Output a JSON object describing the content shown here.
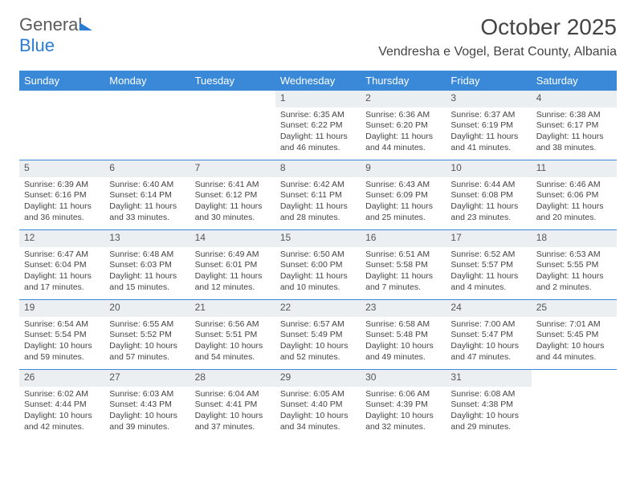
{
  "logo_text1": "General",
  "logo_text2": "Blue",
  "title": "October 2025",
  "location": "Vendresha e Vogel, Berat County, Albania",
  "week_header": {
    "bg_color": "#3a89d8",
    "text_color": "#ffffff",
    "days": [
      "Sunday",
      "Monday",
      "Tuesday",
      "Wednesday",
      "Thursday",
      "Friday",
      "Saturday"
    ]
  },
  "daynum_bg": "#eceff2",
  "border_color": "#3a89d8",
  "text_color": "#444444",
  "font_size_body_pt": 8,
  "weeks": [
    [
      null,
      null,
      null,
      {
        "n": "1",
        "sunrise": "6:35 AM",
        "sunset": "6:22 PM",
        "daylight": "11 hours and 46 minutes."
      },
      {
        "n": "2",
        "sunrise": "6:36 AM",
        "sunset": "6:20 PM",
        "daylight": "11 hours and 44 minutes."
      },
      {
        "n": "3",
        "sunrise": "6:37 AM",
        "sunset": "6:19 PM",
        "daylight": "11 hours and 41 minutes."
      },
      {
        "n": "4",
        "sunrise": "6:38 AM",
        "sunset": "6:17 PM",
        "daylight": "11 hours and 38 minutes."
      }
    ],
    [
      {
        "n": "5",
        "sunrise": "6:39 AM",
        "sunset": "6:16 PM",
        "daylight": "11 hours and 36 minutes."
      },
      {
        "n": "6",
        "sunrise": "6:40 AM",
        "sunset": "6:14 PM",
        "daylight": "11 hours and 33 minutes."
      },
      {
        "n": "7",
        "sunrise": "6:41 AM",
        "sunset": "6:12 PM",
        "daylight": "11 hours and 30 minutes."
      },
      {
        "n": "8",
        "sunrise": "6:42 AM",
        "sunset": "6:11 PM",
        "daylight": "11 hours and 28 minutes."
      },
      {
        "n": "9",
        "sunrise": "6:43 AM",
        "sunset": "6:09 PM",
        "daylight": "11 hours and 25 minutes."
      },
      {
        "n": "10",
        "sunrise": "6:44 AM",
        "sunset": "6:08 PM",
        "daylight": "11 hours and 23 minutes."
      },
      {
        "n": "11",
        "sunrise": "6:46 AM",
        "sunset": "6:06 PM",
        "daylight": "11 hours and 20 minutes."
      }
    ],
    [
      {
        "n": "12",
        "sunrise": "6:47 AM",
        "sunset": "6:04 PM",
        "daylight": "11 hours and 17 minutes."
      },
      {
        "n": "13",
        "sunrise": "6:48 AM",
        "sunset": "6:03 PM",
        "daylight": "11 hours and 15 minutes."
      },
      {
        "n": "14",
        "sunrise": "6:49 AM",
        "sunset": "6:01 PM",
        "daylight": "11 hours and 12 minutes."
      },
      {
        "n": "15",
        "sunrise": "6:50 AM",
        "sunset": "6:00 PM",
        "daylight": "11 hours and 10 minutes."
      },
      {
        "n": "16",
        "sunrise": "6:51 AM",
        "sunset": "5:58 PM",
        "daylight": "11 hours and 7 minutes."
      },
      {
        "n": "17",
        "sunrise": "6:52 AM",
        "sunset": "5:57 PM",
        "daylight": "11 hours and 4 minutes."
      },
      {
        "n": "18",
        "sunrise": "6:53 AM",
        "sunset": "5:55 PM",
        "daylight": "11 hours and 2 minutes."
      }
    ],
    [
      {
        "n": "19",
        "sunrise": "6:54 AM",
        "sunset": "5:54 PM",
        "daylight": "10 hours and 59 minutes."
      },
      {
        "n": "20",
        "sunrise": "6:55 AM",
        "sunset": "5:52 PM",
        "daylight": "10 hours and 57 minutes."
      },
      {
        "n": "21",
        "sunrise": "6:56 AM",
        "sunset": "5:51 PM",
        "daylight": "10 hours and 54 minutes."
      },
      {
        "n": "22",
        "sunrise": "6:57 AM",
        "sunset": "5:49 PM",
        "daylight": "10 hours and 52 minutes."
      },
      {
        "n": "23",
        "sunrise": "6:58 AM",
        "sunset": "5:48 PM",
        "daylight": "10 hours and 49 minutes."
      },
      {
        "n": "24",
        "sunrise": "7:00 AM",
        "sunset": "5:47 PM",
        "daylight": "10 hours and 47 minutes."
      },
      {
        "n": "25",
        "sunrise": "7:01 AM",
        "sunset": "5:45 PM",
        "daylight": "10 hours and 44 minutes."
      }
    ],
    [
      {
        "n": "26",
        "sunrise": "6:02 AM",
        "sunset": "4:44 PM",
        "daylight": "10 hours and 42 minutes."
      },
      {
        "n": "27",
        "sunrise": "6:03 AM",
        "sunset": "4:43 PM",
        "daylight": "10 hours and 39 minutes."
      },
      {
        "n": "28",
        "sunrise": "6:04 AM",
        "sunset": "4:41 PM",
        "daylight": "10 hours and 37 minutes."
      },
      {
        "n": "29",
        "sunrise": "6:05 AM",
        "sunset": "4:40 PM",
        "daylight": "10 hours and 34 minutes."
      },
      {
        "n": "30",
        "sunrise": "6:06 AM",
        "sunset": "4:39 PM",
        "daylight": "10 hours and 32 minutes."
      },
      {
        "n": "31",
        "sunrise": "6:08 AM",
        "sunset": "4:38 PM",
        "daylight": "10 hours and 29 minutes."
      },
      null
    ]
  ],
  "labels": {
    "sunrise": "Sunrise: ",
    "sunset": "Sunset: ",
    "daylight": "Daylight: "
  }
}
